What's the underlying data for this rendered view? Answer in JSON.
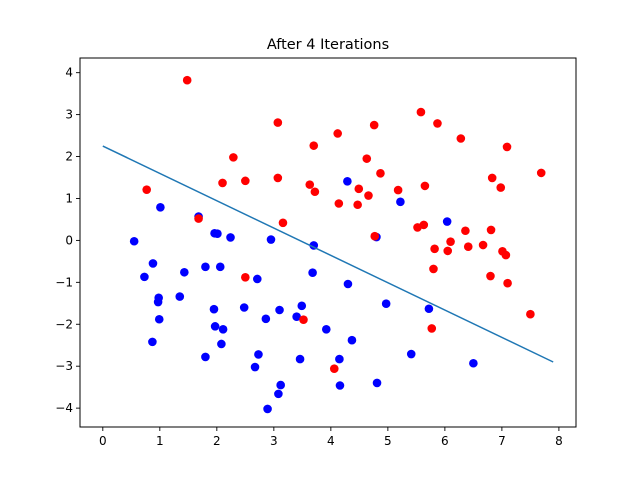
{
  "chart_data": {
    "type": "scatter",
    "title": "After 4 Iterations",
    "xlabel": "",
    "ylabel": "",
    "xlim": [
      -0.4,
      8.3
    ],
    "ylim": [
      -4.45,
      4.35
    ],
    "xticks": [
      0,
      1,
      2,
      3,
      4,
      5,
      6,
      7,
      8
    ],
    "yticks": [
      -4,
      -3,
      -2,
      -1,
      0,
      1,
      2,
      3,
      4
    ],
    "grid": false,
    "legend": "none",
    "colors": {
      "blue": "#0000ff",
      "red": "#ff0000",
      "line": "#1f77b4"
    },
    "series": [
      {
        "color": "#0000ff",
        "points": [
          [
            0.55,
            -0.02
          ],
          [
            0.73,
            -0.87
          ],
          [
            0.88,
            -0.55
          ],
          [
            0.97,
            -1.47
          ],
          [
            0.98,
            -1.37
          ],
          [
            0.99,
            -1.88
          ],
          [
            1.01,
            0.79
          ],
          [
            0.87,
            -2.42
          ],
          [
            1.35,
            -1.34
          ],
          [
            1.43,
            -0.76
          ],
          [
            1.68,
            0.57
          ],
          [
            1.8,
            -0.63
          ],
          [
            1.8,
            -2.78
          ],
          [
            1.95,
            -1.64
          ],
          [
            1.96,
            0.17
          ],
          [
            1.97,
            -2.05
          ],
          [
            2.01,
            0.16
          ],
          [
            2.06,
            -0.63
          ],
          [
            2.08,
            -2.47
          ],
          [
            2.11,
            -2.12
          ],
          [
            2.24,
            0.07
          ],
          [
            2.48,
            -1.6
          ],
          [
            2.67,
            -3.02
          ],
          [
            2.71,
            -0.92
          ],
          [
            2.73,
            -2.72
          ],
          [
            2.86,
            -1.87
          ],
          [
            2.89,
            -4.02
          ],
          [
            2.95,
            0.02
          ],
          [
            3.08,
            -3.66
          ],
          [
            3.1,
            -1.66
          ],
          [
            3.12,
            -3.45
          ],
          [
            3.4,
            -1.82
          ],
          [
            3.46,
            -2.83
          ],
          [
            3.49,
            -1.56
          ],
          [
            3.68,
            -0.77
          ],
          [
            3.7,
            -0.12
          ],
          [
            3.92,
            -2.12
          ],
          [
            4.15,
            -2.83
          ],
          [
            4.16,
            -3.46
          ],
          [
            4.29,
            1.41
          ],
          [
            4.3,
            -1.04
          ],
          [
            4.37,
            -2.38
          ],
          [
            4.8,
            0.08
          ],
          [
            4.81,
            -3.4
          ],
          [
            4.97,
            -1.51
          ],
          [
            5.22,
            0.92
          ],
          [
            5.41,
            -2.71
          ],
          [
            5.72,
            -1.63
          ],
          [
            6.04,
            0.45
          ],
          [
            6.5,
            -2.93
          ]
        ]
      },
      {
        "color": "#ff0000",
        "points": [
          [
            0.77,
            1.21
          ],
          [
            1.48,
            3.82
          ],
          [
            1.68,
            0.52
          ],
          [
            2.1,
            1.37
          ],
          [
            2.29,
            1.98
          ],
          [
            2.5,
            1.42
          ],
          [
            2.5,
            -0.88
          ],
          [
            3.07,
            2.81
          ],
          [
            3.07,
            1.49
          ],
          [
            3.16,
            0.42
          ],
          [
            3.52,
            -1.89
          ],
          [
            3.63,
            1.33
          ],
          [
            3.7,
            2.26
          ],
          [
            3.72,
            1.16
          ],
          [
            4.06,
            -3.06
          ],
          [
            4.12,
            2.55
          ],
          [
            4.14,
            0.88
          ],
          [
            4.47,
            0.85
          ],
          [
            4.49,
            1.23
          ],
          [
            4.63,
            1.95
          ],
          [
            4.66,
            1.07
          ],
          [
            4.76,
            2.75
          ],
          [
            4.77,
            0.1
          ],
          [
            4.87,
            1.6
          ],
          [
            5.18,
            1.2
          ],
          [
            5.52,
            0.31
          ],
          [
            5.58,
            3.06
          ],
          [
            5.63,
            0.37
          ],
          [
            5.65,
            1.3
          ],
          [
            5.77,
            -2.1
          ],
          [
            5.8,
            -0.68
          ],
          [
            5.82,
            -0.2
          ],
          [
            5.87,
            2.79
          ],
          [
            6.05,
            -0.25
          ],
          [
            6.1,
            -0.03
          ],
          [
            6.28,
            2.43
          ],
          [
            6.36,
            0.23
          ],
          [
            6.41,
            -0.15
          ],
          [
            6.67,
            -0.11
          ],
          [
            6.8,
            -0.85
          ],
          [
            6.81,
            0.25
          ],
          [
            6.83,
            1.49
          ],
          [
            6.98,
            1.26
          ],
          [
            7.01,
            -0.26
          ],
          [
            7.07,
            -0.35
          ],
          [
            7.09,
            2.23
          ],
          [
            7.1,
            -1.02
          ],
          [
            7.5,
            -1.76
          ],
          [
            7.69,
            1.61
          ]
        ]
      }
    ],
    "line": {
      "x": [
        0,
        7.9
      ],
      "y": [
        2.25,
        -2.9
      ]
    }
  }
}
